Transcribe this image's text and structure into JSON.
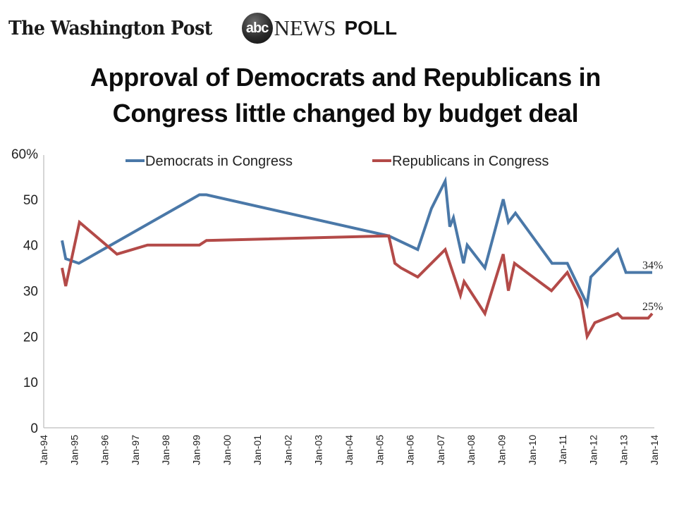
{
  "header": {
    "publisher": "The Washington Post",
    "partner_logo": "abc",
    "partner_name": "NEWS",
    "badge": "POLL"
  },
  "chart_data": {
    "type": "line",
    "title": "Approval of Democrats and Republicans in Congress little changed by budget deal",
    "title_lines": [
      "Approval of Democrats and Republicans in",
      "Congress little changed by budget deal"
    ],
    "xlabel": "",
    "ylabel": "",
    "xlim": [
      1994.0,
      2014.0
    ],
    "ylim": [
      0,
      60
    ],
    "y_ticks": [
      0,
      10,
      20,
      30,
      40,
      50,
      60
    ],
    "y_tick_labels": [
      "0",
      "10",
      "20",
      "30",
      "40",
      "50",
      "60%"
    ],
    "x_ticks": [
      1994,
      1995,
      1996,
      1997,
      1998,
      1999,
      2000,
      2001,
      2002,
      2003,
      2004,
      2005,
      2006,
      2007,
      2008,
      2009,
      2010,
      2011,
      2012,
      2013,
      2014
    ],
    "x_tick_labels": [
      "Jan-94",
      "Jan-95",
      "Jan-96",
      "Jan-97",
      "Jan-98",
      "Jan-99",
      "Jan-00",
      "Jan-01",
      "Jan-02",
      "Jan-03",
      "Jan-04",
      "Jan-05",
      "Jan-06",
      "Jan-07",
      "Jan-08",
      "Jan-09",
      "Jan-10",
      "Jan-11",
      "Jan-12",
      "Jan-13",
      "Jan-14"
    ],
    "grid": false,
    "legend_position": "top",
    "series": [
      {
        "name": "Democrats in Congress",
        "color": "#4a78a8",
        "end_label": "34%",
        "points": [
          [
            1994.6,
            41
          ],
          [
            1994.72,
            37
          ],
          [
            1995.15,
            36
          ],
          [
            1999.1,
            51
          ],
          [
            1999.33,
            51
          ],
          [
            2005.3,
            42
          ],
          [
            2006.25,
            39
          ],
          [
            2006.7,
            48
          ],
          [
            2007.15,
            54
          ],
          [
            2007.3,
            44
          ],
          [
            2007.42,
            46
          ],
          [
            2007.75,
            36
          ],
          [
            2007.87,
            40
          ],
          [
            2008.45,
            35
          ],
          [
            2009.05,
            50
          ],
          [
            2009.22,
            45
          ],
          [
            2009.45,
            47
          ],
          [
            2010.65,
            36
          ],
          [
            2011.15,
            36
          ],
          [
            2011.8,
            27
          ],
          [
            2011.92,
            33
          ],
          [
            2012.8,
            39
          ],
          [
            2013.07,
            34
          ],
          [
            2013.93,
            34
          ]
        ]
      },
      {
        "name": "Republicans in Congress",
        "color": "#b34a48",
        "end_label": "25%",
        "points": [
          [
            1994.6,
            35
          ],
          [
            1994.72,
            31
          ],
          [
            1995.17,
            45
          ],
          [
            1996.4,
            38
          ],
          [
            1997.4,
            40
          ],
          [
            1999.1,
            40
          ],
          [
            1999.33,
            41
          ],
          [
            2005.3,
            42
          ],
          [
            2005.5,
            36
          ],
          [
            2005.7,
            35
          ],
          [
            2006.25,
            33
          ],
          [
            2007.15,
            39
          ],
          [
            2007.65,
            29
          ],
          [
            2007.77,
            32
          ],
          [
            2008.45,
            25
          ],
          [
            2009.05,
            38
          ],
          [
            2009.22,
            30
          ],
          [
            2009.42,
            36
          ],
          [
            2010.63,
            30
          ],
          [
            2011.15,
            34
          ],
          [
            2011.6,
            28
          ],
          [
            2011.8,
            20
          ],
          [
            2012.05,
            23
          ],
          [
            2012.8,
            25
          ],
          [
            2012.95,
            24
          ],
          [
            2013.8,
            24
          ],
          [
            2013.93,
            25
          ]
        ]
      }
    ]
  }
}
